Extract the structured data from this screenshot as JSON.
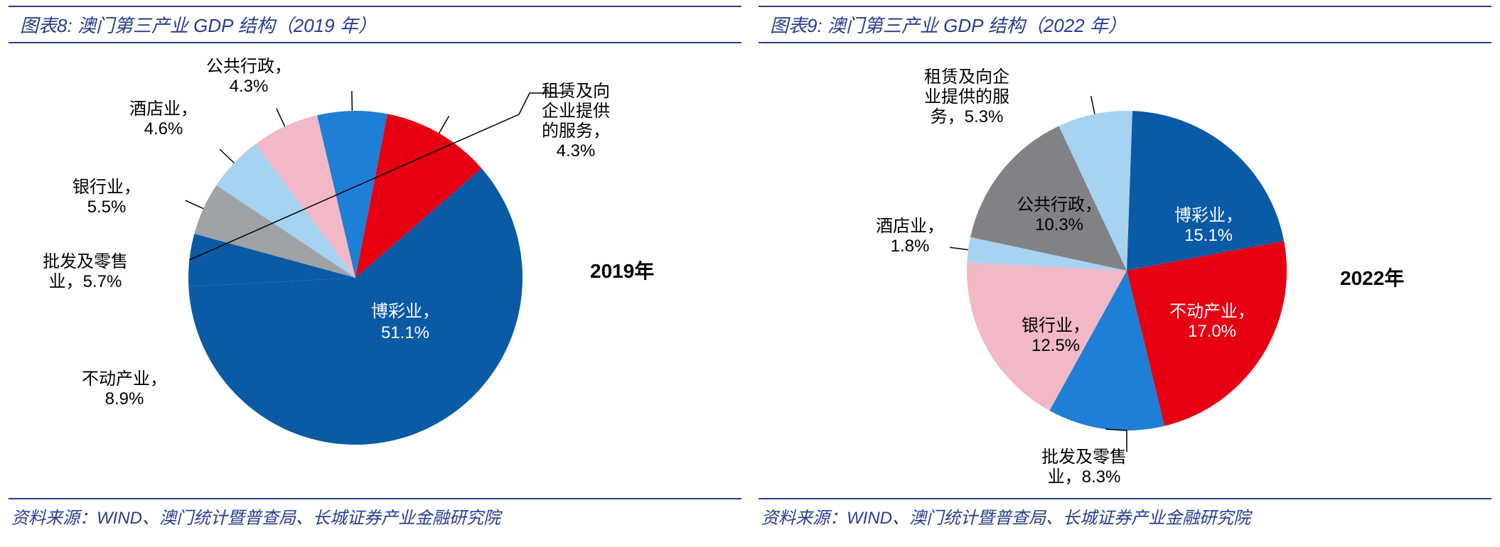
{
  "left": {
    "title": "图表8:   澳门第三产业 GDP 结构（2019 年）",
    "source": "资料来源：WIND、澳门统计暨普查局、长城证券产业金融研究院",
    "year_label": "2019年",
    "chart": {
      "type": "pie",
      "background_color": "#ffffff",
      "label_fontsize": 24,
      "year_fontsize": 28,
      "slices": [
        {
          "name": "博彩业",
          "value": 51.1,
          "label": "博彩业，\n51.1%",
          "color": "#0a5aa6"
        },
        {
          "name": "租赁及向企业提供的服务",
          "value": 4.3,
          "label": "租赁及向\n企业提供\n的服务，\n4.3%",
          "color": "#0a5aa6"
        },
        {
          "name": "公共行政",
          "value": 4.3,
          "label": "公共行政，\n4.3%",
          "color": "#9fa3a6"
        },
        {
          "name": "酒店业",
          "value": 4.6,
          "label": "酒店业，\n4.6%",
          "color": "#a7d3f2"
        },
        {
          "name": "银行业",
          "value": 5.5,
          "label": "银行业，\n5.5%",
          "color": "#f2b8c6"
        },
        {
          "name": "批发及零售业",
          "value": 5.7,
          "label": "批发及零售\n业，5.7%",
          "color": "#1e7fd6"
        },
        {
          "name": "不动产业",
          "value": 8.9,
          "label": "不动产业，\n8.9%",
          "color": "#e60012"
        }
      ]
    }
  },
  "right": {
    "title": "图表9:   澳门第三产业 GDP 结构（2022 年）",
    "source": "资料来源：WIND、澳门统计暨普查局、长城证券产业金融研究院",
    "year_label": "2022年",
    "chart": {
      "type": "pie",
      "background_color": "#ffffff",
      "label_fontsize": 24,
      "year_fontsize": 28,
      "slices": [
        {
          "name": "博彩业",
          "value": 15.1,
          "label": "博彩业，\n15.1%",
          "color": "#0a5aa6"
        },
        {
          "name": "不动产业",
          "value": 17.0,
          "label": "不动产业，\n17.0%",
          "color": "#e60012"
        },
        {
          "name": "批发及零售业",
          "value": 8.3,
          "label": "批发及零售\n业，8.3%",
          "color": "#1e7fd6"
        },
        {
          "name": "银行业",
          "value": 12.5,
          "label": "银行业，\n12.5%",
          "color": "#f2b8c6"
        },
        {
          "name": "酒店业",
          "value": 1.8,
          "label": "酒店业，\n1.8%",
          "color": "#a7d3f2"
        },
        {
          "name": "公共行政",
          "value": 10.3,
          "label": "公共行政，\n10.3%",
          "color": "#808285"
        },
        {
          "name": "租赁及向企业提供的服务",
          "value": 5.3,
          "label": "租赁及向企\n业提供的服\n务，5.3%",
          "color": "#a7d3f2"
        }
      ]
    }
  },
  "style": {
    "title_color": "#2a3b8f",
    "border_color": "#2a3b8f",
    "title_fontsize": 26,
    "source_fontsize": 24
  }
}
